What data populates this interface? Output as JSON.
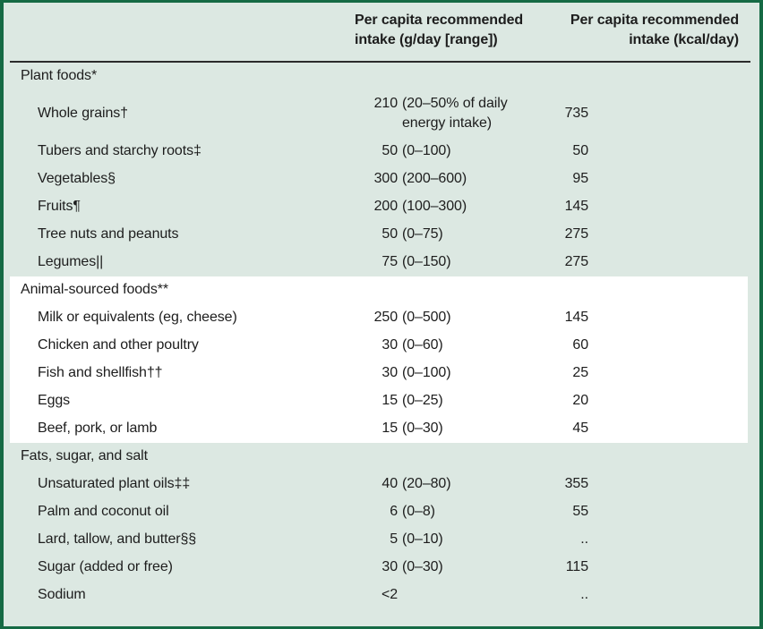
{
  "colors": {
    "background": "#dce8e2",
    "border": "#156a44",
    "highlight_row_background": "#ffffff",
    "header_rule": "#2b2b2b",
    "text": "#1d1d1d"
  },
  "table": {
    "columns": [
      {
        "label": "Per capita recommended intake (g/day [range])"
      },
      {
        "label": "Per capita recommended intake (kcal/day)"
      }
    ],
    "sections": [
      {
        "title": "Plant foods*",
        "highlight": false,
        "rows": [
          {
            "label": "Whole grains†",
            "num": "210",
            "range": "(20–50% of daily energy intake)",
            "kcal": "735"
          },
          {
            "label": "Tubers and starchy roots‡",
            "num": "50",
            "range": "(0–100)",
            "kcal": "50"
          },
          {
            "label": "Vegetables§",
            "num": "300",
            "range": "(200–600)",
            "kcal": "95"
          },
          {
            "label": "Fruits¶",
            "num": "200",
            "range": "(100–300)",
            "kcal": "145"
          },
          {
            "label": "Tree nuts and peanuts",
            "num": "50",
            "range": "(0–75)",
            "kcal": "275"
          },
          {
            "label": "Legumes||",
            "num": "75",
            "range": "(0–150)",
            "kcal": "275"
          }
        ]
      },
      {
        "title": "Animal-sourced foods**",
        "highlight": true,
        "rows": [
          {
            "label": "Milk or equivalents (eg, cheese)",
            "num": "250",
            "range": "(0–500)",
            "kcal": "145"
          },
          {
            "label": "Chicken and other poultry",
            "num": "30",
            "range": "(0–60)",
            "kcal": "60"
          },
          {
            "label": "Fish and shellfish††",
            "num": "30",
            "range": "(0–100)",
            "kcal": "25"
          },
          {
            "label": "Eggs",
            "num": "15",
            "range": "(0–25)",
            "kcal": "20"
          },
          {
            "label": "Beef, pork, or lamb",
            "num": "15",
            "range": "(0–30)",
            "kcal": "45"
          }
        ]
      },
      {
        "title": "Fats, sugar, and salt",
        "highlight": false,
        "rows": [
          {
            "label": "Unsaturated plant oils‡‡",
            "num": "40",
            "range": "(20–80)",
            "kcal": "355"
          },
          {
            "label": "Palm and coconut oil",
            "num": "6",
            "range": "(0–8)",
            "kcal": "55"
          },
          {
            "label": "Lard, tallow, and butter§§",
            "num": "5",
            "range": "(0–10)",
            "kcal": ".."
          },
          {
            "label": "Sugar (added or free)",
            "num": "30",
            "range": "(0–30)",
            "kcal": "115"
          },
          {
            "label": "Sodium",
            "num": "<2",
            "range": "",
            "kcal": ".."
          }
        ]
      }
    ]
  }
}
